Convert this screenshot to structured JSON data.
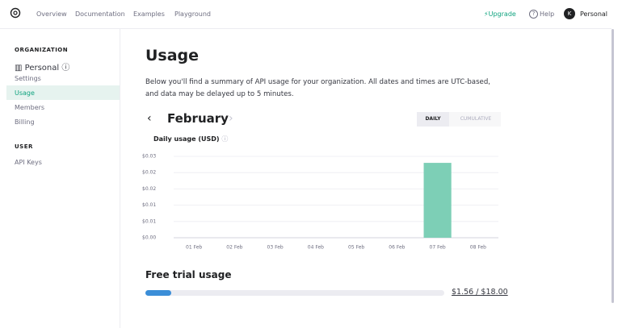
{
  "nav": {
    "links": [
      "Overview",
      "Documentation",
      "Examples",
      "Playground"
    ],
    "upgrade": "Upgrade",
    "help": "Help",
    "avatar": "K",
    "account": "Personal"
  },
  "sidebar": {
    "org_heading": "ORGANIZATION",
    "org_name": "Personal",
    "org_items": [
      "Settings",
      "Usage",
      "Members",
      "Billing"
    ],
    "user_heading": "USER",
    "user_items": [
      "API Keys"
    ]
  },
  "main": {
    "title": "Usage",
    "description": "Below you'll find a summary of API usage for your organization. All dates and times are UTC-based, and data may be delayed up to 5 minutes.",
    "month": "February",
    "toggle": [
      "DAILY",
      "CUMULATIVE"
    ]
  },
  "chart_data": {
    "type": "bar",
    "title": "Daily usage (USD)",
    "categories": [
      "01 Feb",
      "02 Feb",
      "03 Feb",
      "04 Feb",
      "05 Feb",
      "06 Feb",
      "07 Feb",
      "08 Feb"
    ],
    "values": [
      0,
      0,
      0,
      0,
      0,
      0,
      0.023,
      0
    ],
    "color": "#7dcfb6",
    "ylim": [
      0,
      0.025
    ],
    "yticks": [
      {
        "value": 0,
        "label": "$0.00"
      },
      {
        "value": 0.005,
        "label": "$0.01"
      },
      {
        "value": 0.01,
        "label": "$0.01"
      },
      {
        "value": 0.015,
        "label": "$0.02"
      },
      {
        "value": 0.02,
        "label": "$0.02"
      },
      {
        "value": 0.025,
        "label": "$0.03"
      }
    ],
    "grid": true
  },
  "free_trial": {
    "title": "Free trial usage",
    "used": 1.56,
    "limit": 18,
    "label": "$1.56 / $18.00",
    "color": "#3b8ed8"
  }
}
